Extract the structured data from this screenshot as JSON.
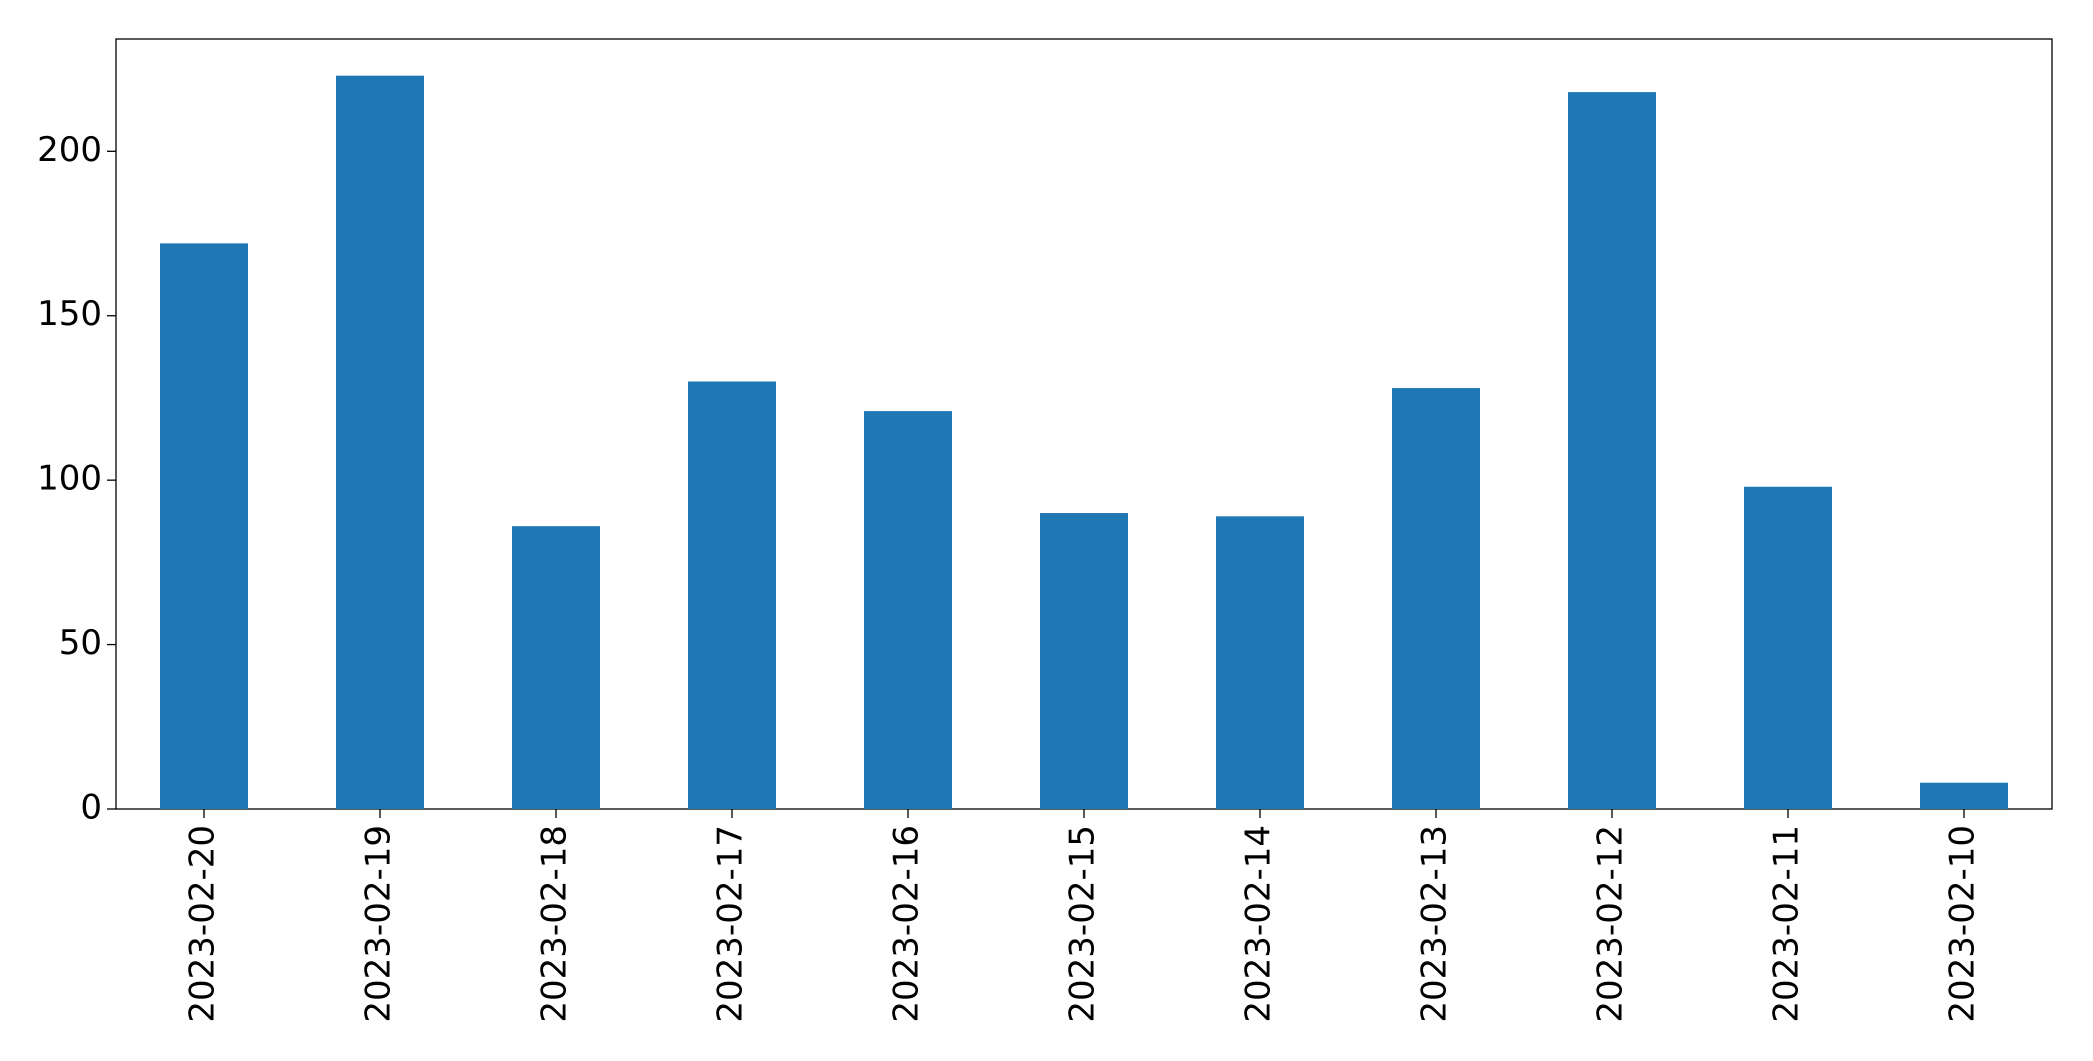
{
  "chart_data": {
    "type": "bar",
    "categories": [
      "2023-02-20",
      "2023-02-19",
      "2023-02-18",
      "2023-02-17",
      "2023-02-16",
      "2023-02-15",
      "2023-02-14",
      "2023-02-13",
      "2023-02-12",
      "2023-02-11",
      "2023-02-10"
    ],
    "values": [
      172,
      223,
      86,
      130,
      121,
      90,
      89,
      128,
      218,
      98,
      8
    ],
    "color": "#1f77b4",
    "ylim": [
      0,
      234.15
    ],
    "yticks": [
      0,
      50,
      100,
      150,
      200
    ],
    "grid": false
  }
}
